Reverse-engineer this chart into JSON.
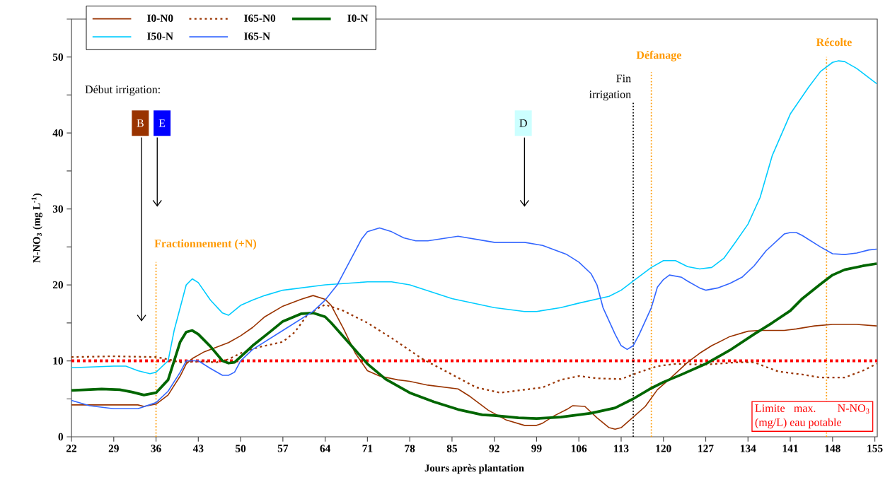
{
  "chart_data": {
    "type": "line",
    "xlabel": "Jours après plantation",
    "ylabel": "N-NO$_{3}$ (mg L$^{-1}$)",
    "xlim": [
      22,
      155.4
    ],
    "ylim": [
      0,
      55
    ],
    "xticks": [
      22,
      29,
      36,
      43,
      50,
      57,
      64,
      71,
      78,
      85,
      92,
      99,
      106,
      113,
      120,
      127,
      134,
      141,
      148,
      155
    ],
    "yticks": [
      0,
      {
        "value": 5,
        "label": null
      },
      10,
      {
        "value": 15,
        "label": null
      },
      20,
      {
        "value": 25,
        "label": null
      },
      30,
      {
        "value": 35,
        "label": null
      },
      40,
      {
        "value": 45,
        "label": null
      },
      50,
      {
        "value": 55,
        "label": null
      }
    ],
    "legend": "top",
    "series": [
      {
        "name": "I0-N0",
        "color": "#993300",
        "line_style": "solid",
        "x": [
          22,
          33,
          34,
          36,
          38,
          40,
          41,
          42,
          44,
          48,
          50,
          52,
          54,
          57,
          60,
          62,
          64,
          65,
          67,
          69,
          71,
          73,
          76,
          78,
          81,
          86,
          88,
          91,
          94,
          97,
          99,
          100,
          102,
          104,
          105,
          107,
          109,
          111,
          112,
          113,
          115,
          117,
          119,
          121,
          124,
          126,
          128,
          131,
          134,
          136,
          140,
          142,
          145,
          148,
          152,
          155.3
        ],
        "values": [
          4.2,
          4.2,
          4.0,
          4.3,
          5.5,
          8,
          9.6,
          10.3,
          11.2,
          12.4,
          13.3,
          14.4,
          15.8,
          17.2,
          18.1,
          18.6,
          18.1,
          17.3,
          14.3,
          11,
          8.7,
          8,
          7.5,
          7.3,
          6.8,
          6.3,
          5.3,
          3.5,
          2.2,
          1.5,
          1.5,
          1.8,
          2.8,
          3.6,
          4.1,
          4.0,
          2.5,
          1.2,
          1.0,
          1.2,
          2.6,
          4.0,
          6.2,
          7.6,
          9.8,
          11.0,
          12.0,
          13.2,
          13.9,
          14.0,
          14.0,
          14.2,
          14.6,
          14.8,
          14.8,
          14.6
        ]
      },
      {
        "name": "I65-N0",
        "color": "#993300",
        "line_style": "dotted",
        "x": [
          22,
          29,
          36,
          38,
          40,
          42,
          44,
          46,
          48,
          50,
          53,
          57,
          59,
          61,
          63,
          64,
          67,
          71,
          75,
          80,
          85,
          89,
          93,
          97,
          100,
          103,
          106,
          109,
          113,
          116,
          119,
          122,
          127,
          132,
          135,
          139,
          143,
          146,
          150,
          153,
          155.3
        ],
        "values": [
          10.5,
          10.6,
          10.5,
          10.2,
          9.8,
          9.9,
          9.9,
          9.8,
          10.2,
          11,
          11.8,
          12.5,
          13.8,
          16,
          17,
          17.4,
          16.6,
          15,
          13,
          10.3,
          8.2,
          6.5,
          5.8,
          6.2,
          6.5,
          7.5,
          8,
          7.7,
          7.6,
          8.5,
          9.3,
          9.6,
          9.5,
          9.8,
          9.8,
          8.6,
          8.2,
          7.8,
          7.8,
          8.7,
          9.6
        ]
      },
      {
        "name": "I0-N",
        "color": "#006600",
        "line_style": "solid",
        "x": [
          22,
          27,
          30,
          32,
          34,
          36,
          38,
          39,
          40,
          41,
          42,
          43,
          45,
          47,
          48,
          49,
          52,
          55,
          57,
          60,
          62,
          64,
          65,
          68,
          71,
          74,
          78,
          82,
          86,
          90,
          92,
          96,
          99,
          103,
          108,
          112,
          115,
          118,
          120,
          123,
          127,
          131,
          135,
          138,
          141,
          143,
          146,
          148,
          150,
          153,
          155.3
        ],
        "values": [
          6.1,
          6.3,
          6.2,
          5.9,
          5.5,
          5.8,
          7.5,
          10,
          12.5,
          13.8,
          14,
          13.5,
          11.9,
          10,
          9.7,
          9.8,
          12,
          13.9,
          15.2,
          16.2,
          16.3,
          15.8,
          15,
          12.3,
          9.6,
          7.6,
          5.8,
          4.6,
          3.6,
          2.9,
          2.8,
          2.5,
          2.4,
          2.6,
          3.1,
          3.8,
          5.0,
          6.4,
          7.2,
          8.2,
          9.6,
          11.4,
          13.5,
          15.0,
          16.6,
          18.2,
          20.1,
          21.3,
          22.0,
          22.5,
          22.8
        ]
      },
      {
        "name": "I50-N",
        "color": "#00ccff",
        "line_style": "solid",
        "x": [
          22,
          29,
          31,
          33,
          35,
          36,
          38,
          39,
          40,
          41,
          42,
          43,
          45,
          47,
          48,
          50,
          52,
          54,
          57,
          64,
          71,
          75,
          78,
          85,
          92,
          97,
          99,
          103,
          106,
          111,
          113,
          115,
          118,
          120,
          122,
          124,
          126,
          128,
          130,
          132,
          134,
          136,
          138,
          141,
          144,
          146,
          148,
          149,
          150,
          152,
          155.3
        ],
        "values": [
          9.1,
          9.3,
          9.3,
          8.7,
          8.3,
          8.5,
          10,
          14,
          17,
          20,
          20.8,
          20.3,
          18,
          16.3,
          16,
          17.3,
          18,
          18.6,
          19.3,
          20,
          20.4,
          20.4,
          20,
          18.2,
          17,
          16.5,
          16.5,
          17,
          17.6,
          18.5,
          19.3,
          20.5,
          22.3,
          23.2,
          23.2,
          22.4,
          22.1,
          22.3,
          23.5,
          25.7,
          28,
          31.5,
          37,
          42.5,
          46,
          48.1,
          49.3,
          49.5,
          49.4,
          48.5,
          46.5
        ]
      },
      {
        "name": "I65-N",
        "color": "#3366ff",
        "line_style": "solid",
        "x": [
          22,
          25,
          29,
          33,
          36,
          38,
          40,
          41,
          43,
          45,
          47,
          48,
          49,
          50,
          52,
          57,
          62,
          64,
          66,
          68,
          70,
          71,
          73,
          75,
          77,
          79,
          81,
          86,
          92,
          97,
          100,
          104,
          106,
          108,
          109,
          110,
          112,
          113,
          114,
          115,
          116,
          118,
          119,
          120,
          121,
          123,
          124,
          126,
          127,
          129,
          131,
          133,
          135,
          137,
          140,
          141,
          142,
          143,
          146,
          148,
          150,
          152,
          154,
          155.3
        ],
        "values": [
          4.8,
          4.1,
          3.7,
          3.7,
          4.5,
          6,
          8.5,
          10,
          10,
          9,
          8.1,
          8.1,
          8.5,
          10,
          11.5,
          14,
          16.5,
          18,
          20,
          23,
          26,
          27,
          27.5,
          27,
          26.2,
          25.8,
          25.8,
          26.4,
          25.6,
          25.6,
          25.2,
          24,
          23,
          21.5,
          20,
          17,
          13.5,
          12,
          11.5,
          12,
          13.5,
          17,
          19.7,
          20.7,
          21.3,
          21,
          20.5,
          19.6,
          19.3,
          19.6,
          20.2,
          21,
          22.5,
          24.5,
          26.7,
          26.9,
          26.9,
          26.5,
          25,
          24.1,
          24,
          24.2,
          24.6,
          24.7
        ]
      }
    ],
    "ref_lines": [
      {
        "axis": "y",
        "value": 10,
        "color": "#ff0000",
        "line_style": "dotted"
      },
      {
        "axis": "x",
        "value": 36,
        "label": "Fractionnement (+N)",
        "color": "#ff9900",
        "line_style": "dotted"
      },
      {
        "axis": "x",
        "value": 115,
        "label": "Fin irrigation",
        "color": "#000000",
        "line_style": "dotted"
      },
      {
        "axis": "x",
        "value": 118,
        "label": "Défanage",
        "color": "#ff9900",
        "line_style": "dotted"
      },
      {
        "axis": "x",
        "value": 147,
        "label": "Récolte",
        "color": "#ff9900",
        "line_style": "dotted"
      }
    ],
    "annotations": [
      "Début irrigation:",
      "B",
      "E",
      "D",
      "Limite max. N-NO$_{3}$ (mg/L) eau potable"
    ]
  }
}
